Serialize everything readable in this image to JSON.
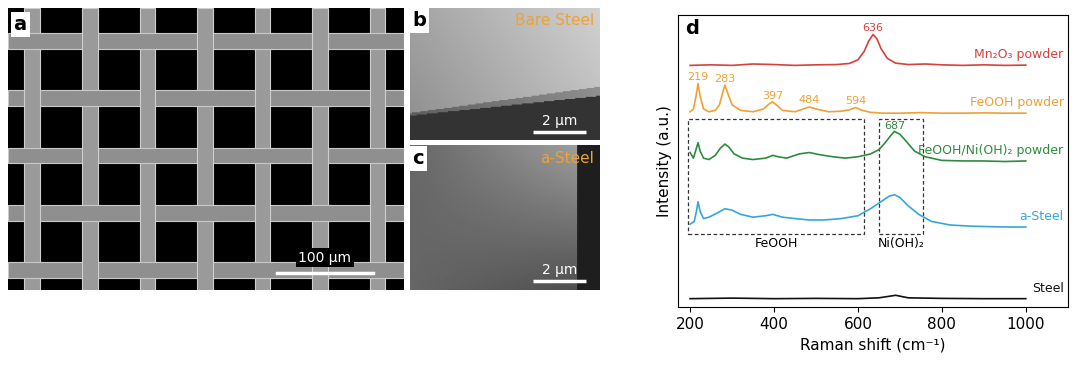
{
  "images": [
    {
      "label": "a",
      "scale_bar": "100 μm"
    },
    {
      "label": "b",
      "caption": "Bare Steel",
      "scale_bar": "2 μm"
    },
    {
      "label": "c",
      "caption": "a-Steel",
      "scale_bar": "2 μm"
    }
  ],
  "chart_data": {
    "type": "line",
    "label": "d",
    "xlabel": "Raman shift (cm⁻¹)",
    "ylabel": "Intensity (a.u.)",
    "xlim": [
      170,
      1100
    ],
    "xticks": [
      200,
      400,
      600,
      800,
      1000
    ],
    "ylim": [
      0,
      10.4
    ],
    "tick_labels": "x",
    "series": [
      {
        "name": "Mn₂O₃ powder",
        "color": "#d8403c",
        "x": [
          200,
          250,
          300,
          350,
          400,
          450,
          500,
          550,
          580,
          600,
          615,
          625,
          636,
          645,
          655,
          670,
          690,
          720,
          760,
          800,
          850,
          900,
          950,
          1000
        ],
        "values": [
          8.6,
          8.62,
          8.6,
          8.65,
          8.63,
          8.6,
          8.62,
          8.63,
          8.67,
          8.8,
          9.1,
          9.45,
          9.7,
          9.55,
          9.2,
          8.85,
          8.68,
          8.63,
          8.65,
          8.62,
          8.6,
          8.62,
          8.6,
          8.61
        ]
      },
      {
        "name": "FeOOH powder",
        "color": "#f0a035",
        "x": [
          200,
          208,
          214,
          219,
          224,
          232,
          245,
          260,
          270,
          277,
          283,
          290,
          300,
          320,
          350,
          375,
          390,
          397,
          405,
          420,
          450,
          470,
          484,
          500,
          530,
          560,
          580,
          594,
          610,
          630,
          660,
          700,
          750,
          800,
          850,
          900,
          950,
          1000
        ],
        "values": [
          6.95,
          7.05,
          7.5,
          7.95,
          7.5,
          7.05,
          6.95,
          7.0,
          7.2,
          7.6,
          7.9,
          7.6,
          7.2,
          7.0,
          6.95,
          7.05,
          7.25,
          7.3,
          7.2,
          7.0,
          6.95,
          7.05,
          7.12,
          7.05,
          6.95,
          6.97,
          7.02,
          7.1,
          7.0,
          6.93,
          6.9,
          6.9,
          6.92,
          6.9,
          6.9,
          6.91,
          6.9,
          6.9
        ]
      },
      {
        "name": "FeOOH/Ni(OH)₂ powder",
        "color": "#2e8b3e",
        "x": [
          200,
          208,
          214,
          219,
          224,
          232,
          245,
          260,
          272,
          283,
          292,
          305,
          325,
          350,
          380,
          397,
          410,
          430,
          460,
          484,
          510,
          540,
          570,
          600,
          630,
          650,
          665,
          678,
          687,
          700,
          715,
          735,
          760,
          800,
          850,
          900,
          950,
          1000
        ],
        "values": [
          5.5,
          5.3,
          5.6,
          5.85,
          5.55,
          5.3,
          5.25,
          5.4,
          5.65,
          5.8,
          5.7,
          5.45,
          5.3,
          5.25,
          5.3,
          5.4,
          5.35,
          5.3,
          5.45,
          5.5,
          5.42,
          5.35,
          5.3,
          5.35,
          5.45,
          5.6,
          5.85,
          6.1,
          6.25,
          6.15,
          5.9,
          5.55,
          5.35,
          5.22,
          5.2,
          5.2,
          5.18,
          5.2
        ]
      },
      {
        "name": "a-Steel",
        "color": "#35a6dc",
        "x": [
          200,
          210,
          215,
          219,
          224,
          232,
          245,
          265,
          283,
          300,
          320,
          350,
          380,
          397,
          420,
          450,
          484,
          520,
          560,
          600,
          630,
          655,
          675,
          687,
          700,
          720,
          745,
          775,
          820,
          870,
          920,
          960,
          1000
        ],
        "values": [
          2.95,
          3.05,
          3.4,
          3.75,
          3.4,
          3.15,
          3.2,
          3.35,
          3.5,
          3.45,
          3.3,
          3.2,
          3.25,
          3.3,
          3.2,
          3.15,
          3.1,
          3.1,
          3.15,
          3.25,
          3.5,
          3.75,
          3.95,
          4.0,
          3.9,
          3.6,
          3.3,
          3.05,
          2.92,
          2.88,
          2.86,
          2.85,
          2.85
        ]
      },
      {
        "name": "Steel",
        "color": "#111111",
        "x": [
          200,
          300,
          400,
          500,
          600,
          650,
          690,
          720,
          800,
          900,
          1000
        ],
        "values": [
          0.3,
          0.32,
          0.3,
          0.31,
          0.3,
          0.33,
          0.42,
          0.33,
          0.31,
          0.3,
          0.3
        ]
      }
    ],
    "annotations": [
      {
        "text": "636",
        "x": 636,
        "y": 9.75,
        "color": "#d8403c"
      },
      {
        "text": "219",
        "x": 219,
        "y": 8.0,
        "color": "#f0a035"
      },
      {
        "text": "283",
        "x": 283,
        "y": 7.95,
        "color": "#f0a035"
      },
      {
        "text": "397",
        "x": 397,
        "y": 7.35,
        "color": "#f0a035"
      },
      {
        "text": "484",
        "x": 484,
        "y": 7.2,
        "color": "#f0a035"
      },
      {
        "text": "594",
        "x": 594,
        "y": 7.15,
        "color": "#f0a035"
      },
      {
        "text": "687",
        "x": 687,
        "y": 6.27,
        "color": "#2e8b3e"
      }
    ],
    "regions": [
      {
        "label": "FeOOH",
        "x": [
          195,
          615
        ],
        "y": [
          2.6,
          6.7
        ]
      },
      {
        "label": "Ni(OH)₂",
        "x": [
          650,
          755
        ],
        "y": [
          2.6,
          6.7
        ]
      }
    ]
  }
}
